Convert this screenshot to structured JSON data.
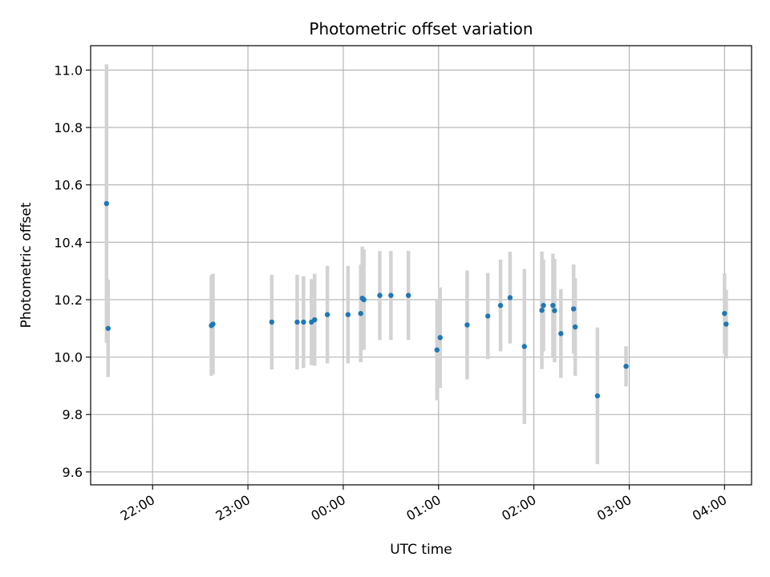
{
  "chart_data": {
    "type": "scatter",
    "title": "Photometric offset variation",
    "xlabel": "UTC time",
    "ylabel": "Photometric offset",
    "x_axis": "time",
    "x_range": [
      "21:21",
      "04:17"
    ],
    "ylim": [
      9.555,
      11.085
    ],
    "x_ticks": [
      "22:00",
      "23:00",
      "00:00",
      "01:00",
      "02:00",
      "03:00",
      "04:00"
    ],
    "y_ticks": [
      "9.6",
      "9.8",
      "10.0",
      "10.2",
      "10.4",
      "10.6",
      "10.8",
      "11.0"
    ],
    "grid": true,
    "marker_color": "#1f77b4",
    "errorbar_color": "#d3d3d3",
    "points": [
      {
        "x": "21:31",
        "y": 10.535,
        "yerr": 0.485
      },
      {
        "x": "21:32",
        "y": 10.1,
        "yerr": 0.17
      },
      {
        "x": "22:37",
        "y": 10.11,
        "yerr": 0.175
      },
      {
        "x": "22:38",
        "y": 10.115,
        "yerr": 0.175
      },
      {
        "x": "23:15",
        "y": 10.122,
        "yerr": 0.165
      },
      {
        "x": "23:31",
        "y": 10.122,
        "yerr": 0.165
      },
      {
        "x": "23:35",
        "y": 10.122,
        "yerr": 0.16
      },
      {
        "x": "23:40",
        "y": 10.122,
        "yerr": 0.15
      },
      {
        "x": "23:42",
        "y": 10.13,
        "yerr": 0.16
      },
      {
        "x": "23:50",
        "y": 10.148,
        "yerr": 0.17
      },
      {
        "x": "00:03",
        "y": 10.148,
        "yerr": 0.17
      },
      {
        "x": "00:11",
        "y": 10.152,
        "yerr": 0.17
      },
      {
        "x": "00:12",
        "y": 10.205,
        "yerr": 0.18
      },
      {
        "x": "00:13",
        "y": 10.2,
        "yerr": 0.175
      },
      {
        "x": "00:23",
        "y": 10.215,
        "yerr": 0.155
      },
      {
        "x": "00:30",
        "y": 10.215,
        "yerr": 0.155
      },
      {
        "x": "00:41",
        "y": 10.215,
        "yerr": 0.155
      },
      {
        "x": "00:59",
        "y": 10.025,
        "yerr": 0.175
      },
      {
        "x": "01:01",
        "y": 10.068,
        "yerr": 0.175
      },
      {
        "x": "01:18",
        "y": 10.112,
        "yerr": 0.19
      },
      {
        "x": "01:31",
        "y": 10.143,
        "yerr": 0.15
      },
      {
        "x": "01:39",
        "y": 10.18,
        "yerr": 0.16
      },
      {
        "x": "01:45",
        "y": 10.207,
        "yerr": 0.16
      },
      {
        "x": "01:54",
        "y": 10.037,
        "yerr": 0.27
      },
      {
        "x": "02:05",
        "y": 10.163,
        "yerr": 0.205
      },
      {
        "x": "02:06",
        "y": 10.18,
        "yerr": 0.16
      },
      {
        "x": "02:12",
        "y": 10.18,
        "yerr": 0.18
      },
      {
        "x": "02:13",
        "y": 10.162,
        "yerr": 0.18
      },
      {
        "x": "02:17",
        "y": 10.082,
        "yerr": 0.155
      },
      {
        "x": "02:25",
        "y": 10.168,
        "yerr": 0.155
      },
      {
        "x": "02:26",
        "y": 10.105,
        "yerr": 0.17
      },
      {
        "x": "02:40",
        "y": 9.865,
        "yerr": 0.238
      },
      {
        "x": "02:58",
        "y": 9.968,
        "yerr": 0.07
      },
      {
        "x": "04:00",
        "y": 10.152,
        "yerr": 0.14
      },
      {
        "x": "04:01",
        "y": 10.115,
        "yerr": 0.12
      }
    ]
  }
}
